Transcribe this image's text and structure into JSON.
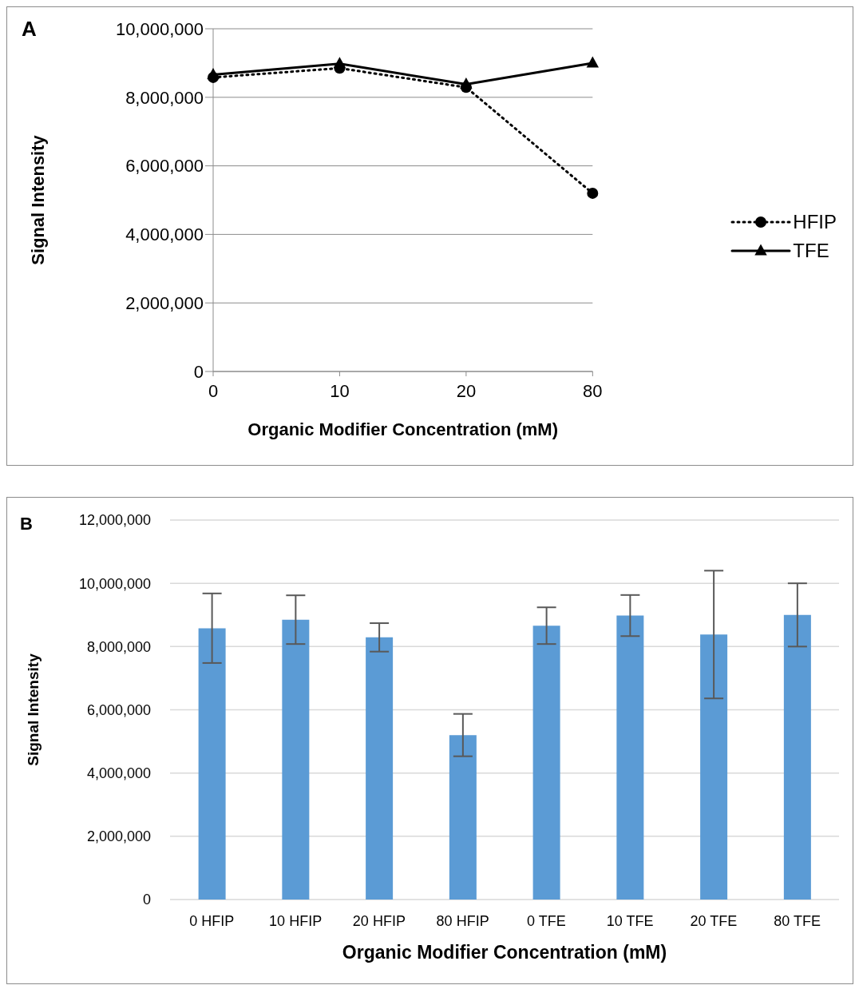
{
  "chart_data": [
    {
      "type": "line",
      "annotations": [
        "A"
      ],
      "xlabel": "Organic Modifier Concentration (mM)",
      "ylabel": "Signal Intensity",
      "categories": [
        "0",
        "10",
        "20",
        "80"
      ],
      "series": [
        {
          "name": "HFIP",
          "color": "#000000",
          "marker": "circle",
          "line_style": "dotted",
          "values": [
            8580000,
            8850000,
            8290000,
            5200000
          ]
        },
        {
          "name": "TFE",
          "color": "#000000",
          "marker": "triangle",
          "line_style": "solid",
          "values": [
            8660000,
            8980000,
            8380000,
            9000000
          ]
        }
      ],
      "ylim": [
        0,
        10000000
      ],
      "yticks": [
        {
          "value": 0,
          "label": "0"
        },
        {
          "value": 2000000,
          "label": "2,000,000"
        },
        {
          "value": 4000000,
          "label": "4,000,000"
        },
        {
          "value": 6000000,
          "label": "6,000,000"
        },
        {
          "value": 8000000,
          "label": "8,000,000"
        },
        {
          "value": 10000000,
          "label": "10,000,000"
        }
      ],
      "grid": "y",
      "legend": "right"
    },
    {
      "type": "bar",
      "annotations": [
        "B"
      ],
      "xlabel": "Organic Modifier Concentration (mM)",
      "ylabel": "Signal Intensity",
      "categories": [
        "0 HFIP",
        "10 HFIP",
        "20 HFIP",
        "80 HFIP",
        "0 TFE",
        "10 TFE",
        "20 TFE",
        "80 TFE"
      ],
      "values": [
        8580000,
        8850000,
        8290000,
        5200000,
        8660000,
        8980000,
        8380000,
        9000000
      ],
      "errors": [
        1100000,
        770000,
        450000,
        670000,
        580000,
        650000,
        2020000,
        1000000
      ],
      "color": "#5b9bd5",
      "ylim": [
        0,
        12000000
      ],
      "yticks": [
        {
          "value": 0,
          "label": "0"
        },
        {
          "value": 2000000,
          "label": "2,000,000"
        },
        {
          "value": 4000000,
          "label": "4,000,000"
        },
        {
          "value": 6000000,
          "label": "6,000,000"
        },
        {
          "value": 8000000,
          "label": "8,000,000"
        },
        {
          "value": 10000000,
          "label": "10,000,000"
        },
        {
          "value": 12000000,
          "label": "12,000,000"
        }
      ],
      "grid": "y"
    }
  ]
}
